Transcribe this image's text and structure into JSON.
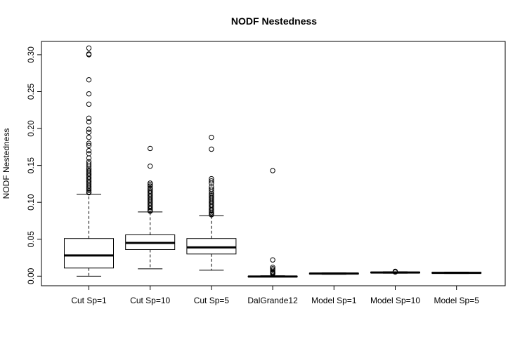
{
  "chart_data": {
    "type": "boxplot",
    "title": "NODF Nestedness",
    "xlabel": "",
    "ylabel": "NODF Nestedness",
    "ylim": [
      -0.013,
      0.318
    ],
    "yticks": [
      "0.00",
      "0.05",
      "0.10",
      "0.15",
      "0.20",
      "0.25",
      "0.30"
    ],
    "categories": [
      "Cut Sp=1",
      "Cut Sp=10",
      "Cut Sp=5",
      "DalGrande12",
      "Model Sp=1",
      "Model Sp=10",
      "Model Sp=5"
    ],
    "boxes": [
      {
        "name": "Cut Sp=1",
        "whisker_low": 0.0,
        "q1": 0.011,
        "median": 0.028,
        "q3": 0.051,
        "whisker_high": 0.111,
        "outliers": [
          0.309,
          0.301,
          0.3,
          0.266,
          0.247,
          0.233,
          0.214,
          0.209,
          0.199,
          0.195,
          0.188,
          0.18,
          0.177,
          0.17,
          0.166,
          0.16,
          0.155,
          0.152,
          0.149,
          0.146,
          0.144,
          0.142,
          0.14,
          0.138,
          0.136,
          0.134,
          0.132,
          0.13,
          0.128,
          0.126,
          0.124,
          0.122,
          0.12,
          0.118,
          0.116,
          0.114,
          0.113
        ]
      },
      {
        "name": "Cut Sp=10",
        "whisker_low": 0.01,
        "q1": 0.036,
        "median": 0.045,
        "q3": 0.056,
        "whisker_high": 0.087,
        "outliers": [
          0.173,
          0.149,
          0.126,
          0.124,
          0.122,
          0.119,
          0.117,
          0.115,
          0.113,
          0.111,
          0.109,
          0.107,
          0.105,
          0.103,
          0.101,
          0.099,
          0.097,
          0.095,
          0.093,
          0.091,
          0.089,
          0.088
        ]
      },
      {
        "name": "Cut Sp=5",
        "whisker_low": 0.008,
        "q1": 0.03,
        "median": 0.039,
        "q3": 0.051,
        "whisker_high": 0.082,
        "outliers": [
          0.188,
          0.172,
          0.132,
          0.129,
          0.126,
          0.121,
          0.118,
          0.115,
          0.112,
          0.11,
          0.108,
          0.106,
          0.104,
          0.102,
          0.1,
          0.098,
          0.096,
          0.094,
          0.092,
          0.09,
          0.088,
          0.086,
          0.084,
          0.083
        ]
      },
      {
        "name": "DalGrande12",
        "whisker_low": -0.001,
        "q1": -0.001,
        "median": -0.0005,
        "q3": 0.0,
        "whisker_high": 0.0005,
        "outliers": [
          0.143,
          0.022,
          0.012,
          0.01,
          0.008,
          0.006,
          0.005,
          0.004,
          0.003
        ]
      },
      {
        "name": "Model Sp=1",
        "whisker_low": 0.0025,
        "q1": 0.003,
        "median": 0.0035,
        "q3": 0.004,
        "whisker_high": 0.0045,
        "outliers": []
      },
      {
        "name": "Model Sp=10",
        "whisker_low": 0.004,
        "q1": 0.0045,
        "median": 0.005,
        "q3": 0.0055,
        "whisker_high": 0.006,
        "outliers": [
          0.0065,
          0.0055
        ]
      },
      {
        "name": "Model Sp=5",
        "whisker_low": 0.0035,
        "q1": 0.004,
        "median": 0.0045,
        "q3": 0.005,
        "whisker_high": 0.0055,
        "outliers": []
      }
    ]
  }
}
